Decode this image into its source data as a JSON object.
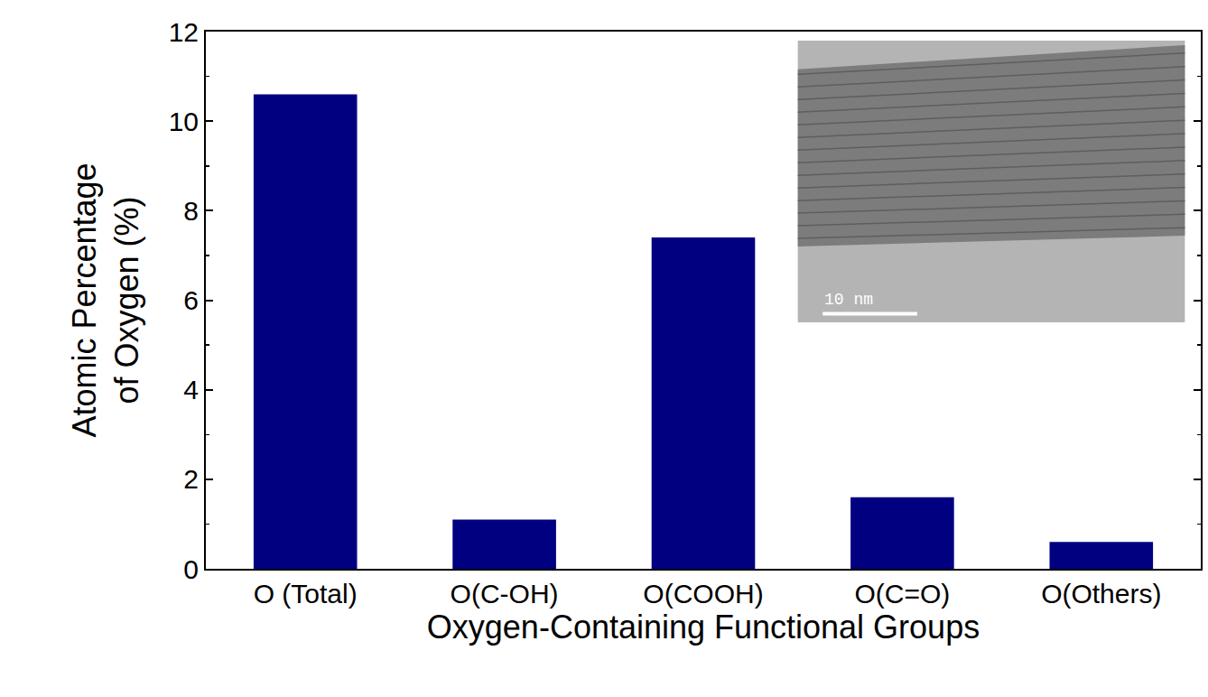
{
  "chart_data": {
    "type": "bar",
    "x_label": "Oxygen-Containing Functional Groups",
    "y_label": "Atomic Percentage\nof Oxygen (%)",
    "categories": [
      "O (Total)",
      "O(C-OH)",
      "O(COOH)",
      "O(C=O)",
      "O(Others)"
    ],
    "values": [
      10.6,
      1.1,
      7.4,
      1.6,
      0.6
    ],
    "color": "#000080",
    "ylim": [
      0,
      12
    ],
    "yticks": [
      0,
      2,
      4,
      6,
      8,
      10,
      12
    ],
    "grid": false,
    "annotations": [
      {
        "text": "10 nm"
      }
    ]
  }
}
